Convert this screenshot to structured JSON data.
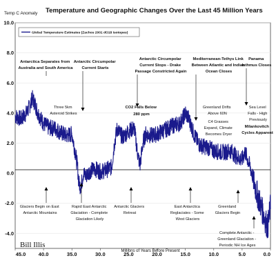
{
  "chart_data": {
    "type": "line",
    "title": "Temperature and Geographic Changes Over the Last 45 Million Years",
    "ylabel": "Temp C Anomaly",
    "xlabel": "Millions of Years Before Present",
    "xlim": [
      45.0,
      0.0
    ],
    "ylim": [
      -5.0,
      10.0
    ],
    "x_ticks": [
      "45.0",
      "40.0",
      "35.0",
      "30.0",
      "25.0",
      "20.0",
      "15.0",
      "10.0",
      "5.0",
      "0.0"
    ],
    "y_ticks": [
      "10.0",
      "8.0",
      "6.0",
      "4.0",
      "2.0",
      "0.0",
      "-2.0",
      "-4.0"
    ],
    "grid": "horizontal",
    "legend": {
      "position": "top-left",
      "entries": [
        "Global Temperature Estimates (Zachos 2001 dO18 Isotopes)"
      ]
    },
    "series": [
      {
        "name": "Global Temperature Estimates (Zachos 2001 dO18 Isotopes)",
        "color": "#1a1a8c",
        "x": [
          45.0,
          44.0,
          43.0,
          42.5,
          42.0,
          41.5,
          41.0,
          40.0,
          39.0,
          38.0,
          37.0,
          36.0,
          35.0,
          34.5,
          34.0,
          33.8,
          33.5,
          33.2,
          33.0,
          32.5,
          32.0,
          31.0,
          30.0,
          29.0,
          28.0,
          27.5,
          27.0,
          26.5,
          26.0,
          25.0,
          24.0,
          23.5,
          23.0,
          22.5,
          22.0,
          21.0,
          20.0,
          19.0,
          18.0,
          17.0,
          16.0,
          15.5,
          15.0,
          14.5,
          14.0,
          13.5,
          13.0,
          12.5,
          12.0,
          11.0,
          10.0,
          9.0,
          8.0,
          7.0,
          6.0,
          5.0,
          4.5,
          4.0,
          3.5,
          3.0,
          2.5,
          2.0,
          1.5,
          1.0,
          0.5,
          0.0
        ],
        "y": [
          3.8,
          3.6,
          4.0,
          4.4,
          5.0,
          4.6,
          4.0,
          3.3,
          3.0,
          3.0,
          2.7,
          2.5,
          2.6,
          1.6,
          0.4,
          -0.6,
          -0.9,
          -0.5,
          0.0,
          -0.2,
          0.1,
          0.3,
          0.1,
          0.2,
          0.4,
          2.0,
          3.0,
          2.6,
          2.4,
          2.8,
          3.0,
          1.5,
          0.5,
          2.0,
          2.6,
          2.5,
          2.6,
          2.8,
          3.0,
          3.2,
          3.3,
          3.6,
          4.0,
          3.7,
          3.2,
          2.6,
          2.2,
          1.9,
          1.8,
          1.7,
          1.5,
          1.4,
          1.4,
          1.5,
          1.1,
          0.9,
          1.4,
          0.9,
          0.3,
          -0.4,
          -1.2,
          -1.8,
          -2.4,
          -3.0,
          -3.6,
          -2.2
        ]
      }
    ],
    "annotations_top": [
      "Antarctica Separates from Australia and South America",
      "Antarctic Circumpolar Current Starts",
      "Antarctic Circumpolar Current Stops - Drake Passage Constricted Again",
      "Mediterranean-Tethys Link Between Atlantic and Indian Ocean Closes",
      "Panama Isthmus Closes",
      "Three 5km Asteroid Strikes",
      "CO2 Falls Below 280 ppm",
      "Greenland Drifts Above 60N",
      "Sea Level Falls - High Previously",
      "C4 Grasses Expand, Climate Becomes Dryer",
      "Milankovitch Cycles Apparent"
    ],
    "annotations_bottom": [
      "Glaciers Begin on East Antarctic Mountains",
      "Rapid East Antarctic Glaciation - Complete Glaciation Likely",
      "Antarctic Glaciers Retreat",
      "East Antarctica Reglaciates - Some West Glaciers",
      "Greenland Glaciers Begin",
      "Complete Antarctic - Greenland Glaciation - Periodic NH Ice Ages"
    ],
    "watermark": "Bill Illis"
  }
}
